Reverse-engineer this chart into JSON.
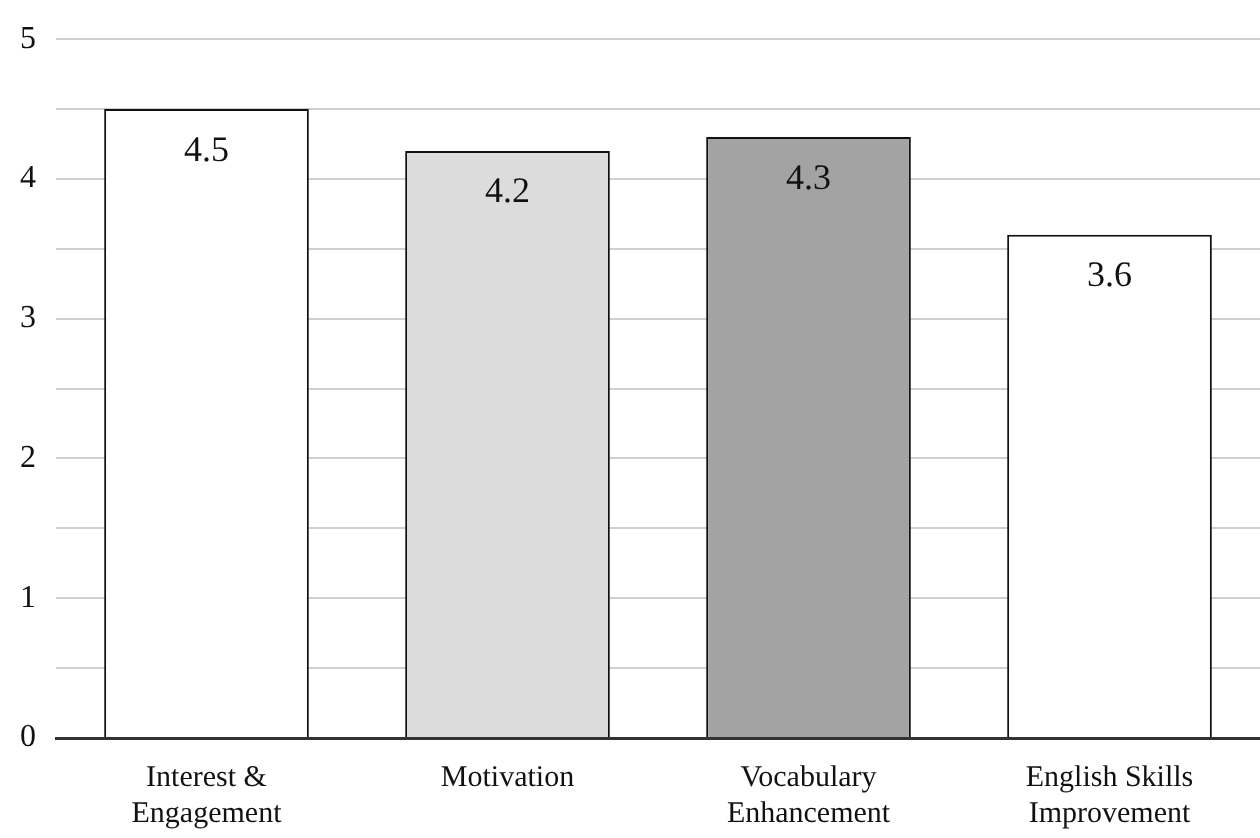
{
  "chart_data": {
    "type": "bar",
    "categories": [
      "Interest & Engagement",
      "Motivation",
      "Vocabulary Enhancement",
      "English Skills Improvement"
    ],
    "values": [
      4.5,
      4.2,
      4.3,
      3.6
    ],
    "colors": [
      "#ffffff",
      "#dcdcdc",
      "#a3a3a3",
      "#ffffff"
    ],
    "ylim": [
      0,
      5
    ],
    "yticks": [
      0,
      {
        "value": 0.5,
        "label": null
      },
      1,
      {
        "value": 1.5,
        "label": null
      },
      2,
      {
        "value": 2.5,
        "label": null
      },
      3,
      {
        "value": 3.5,
        "label": null
      },
      4,
      {
        "value": 4.5,
        "label": null
      },
      5
    ],
    "grid": true,
    "data_labels": true
  }
}
